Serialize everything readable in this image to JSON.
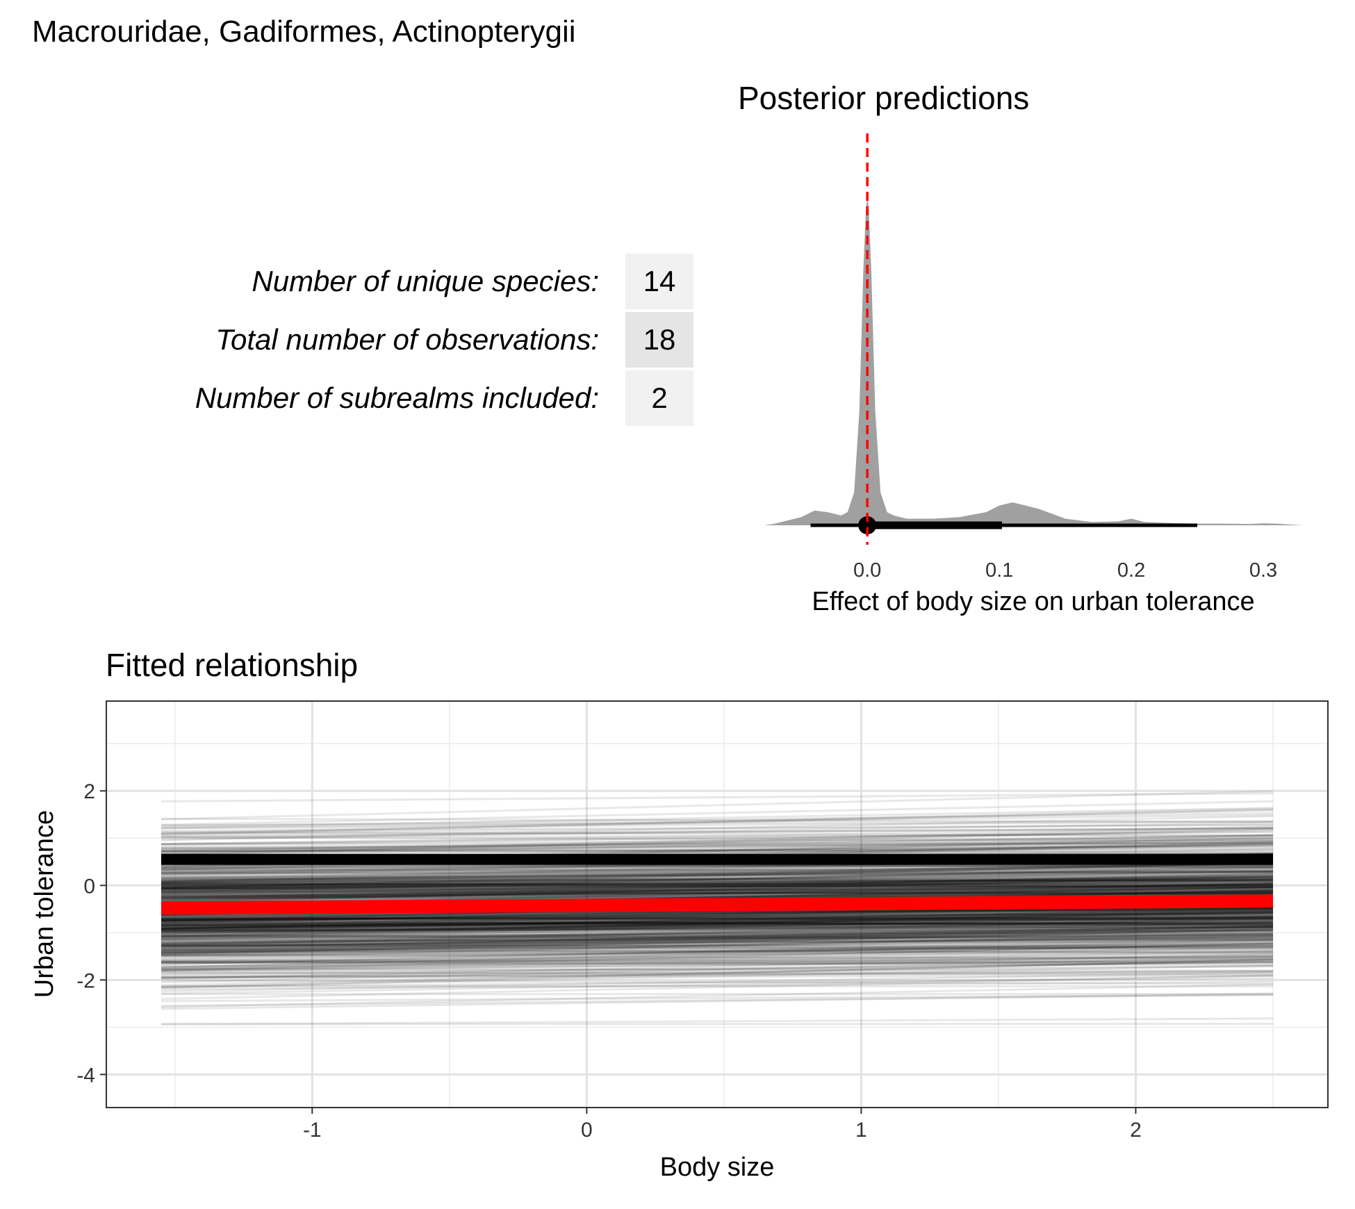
{
  "title": "Macrouridae, Gadiformes, Actinopterygii",
  "colors": {
    "posterior_fill": "#a0a0a0",
    "reference_line": "#ff0000",
    "fitted_mean": "#ff0000",
    "draws": "#000000",
    "table_cell_light": "#f1f1f1",
    "table_cell_dark": "#e5e5e5"
  },
  "stats_table": {
    "rows": [
      {
        "label": "Number of unique species:",
        "value": "14"
      },
      {
        "label": "Total number of observations:",
        "value": "18"
      },
      {
        "label": "Number of subrealms included:",
        "value": "2"
      }
    ]
  },
  "chart_data": [
    {
      "type": "area",
      "title": "Posterior predictions",
      "xlabel": "Effect of body size on urban tolerance",
      "ylabel": "",
      "xlim": [
        -0.078,
        0.33
      ],
      "xticks": [
        "0.0",
        "0.1",
        "0.2",
        "0.3"
      ],
      "xtick_values": [
        0.0,
        0.1,
        0.2,
        0.3
      ],
      "grid": false,
      "density": {
        "x": [
          -0.078,
          -0.07,
          -0.06,
          -0.05,
          -0.04,
          -0.03,
          -0.02,
          -0.015,
          -0.01,
          -0.006,
          -0.003,
          -0.001,
          0.0,
          0.001,
          0.003,
          0.006,
          0.01,
          0.015,
          0.02,
          0.03,
          0.05,
          0.07,
          0.09,
          0.1,
          0.11,
          0.12,
          0.13,
          0.15,
          0.17,
          0.19,
          0.2,
          0.21,
          0.23,
          0.25,
          0.27,
          0.29,
          0.3,
          0.31,
          0.33
        ],
        "y": [
          0.0,
          0.005,
          0.015,
          0.025,
          0.045,
          0.04,
          0.03,
          0.04,
          0.1,
          0.35,
          0.78,
          0.97,
          1.0,
          0.97,
          0.78,
          0.35,
          0.1,
          0.04,
          0.03,
          0.02,
          0.02,
          0.025,
          0.04,
          0.06,
          0.07,
          0.06,
          0.05,
          0.02,
          0.01,
          0.012,
          0.02,
          0.01,
          0.007,
          0.005,
          0.005,
          0.004,
          0.006,
          0.005,
          0.0
        ]
      },
      "reference_line_x": 0.0,
      "point_estimate": 0.0,
      "interval_inner": [
        0.0,
        0.102
      ],
      "interval_outer": [
        -0.043,
        0.25
      ]
    },
    {
      "type": "line",
      "title": "Fitted relationship",
      "xlabel": "Body size",
      "ylabel": "Urban tolerance",
      "xlim": [
        -1.75,
        2.7
      ],
      "ylim": [
        -4.7,
        3.9
      ],
      "xticks": [
        "-1",
        "0",
        "1",
        "2"
      ],
      "xtick_values": [
        -1,
        0,
        1,
        2
      ],
      "yticks": [
        "-4",
        "-2",
        "0",
        "2"
      ],
      "ytick_values": [
        -4,
        -2,
        0,
        2
      ],
      "grid": true,
      "x_range": [
        -1.55,
        2.5
      ],
      "mean_line": {
        "name": "",
        "x": [
          -1.55,
          2.5
        ],
        "y": [
          -0.48,
          -0.33
        ]
      },
      "posterior_draws": {
        "count": 900,
        "intercept_range": [
          -4.3,
          3.5
        ],
        "dense_band": [
          0.45,
          0.65
        ],
        "slope_typical_range": [
          -0.02,
          0.15
        ]
      }
    }
  ]
}
